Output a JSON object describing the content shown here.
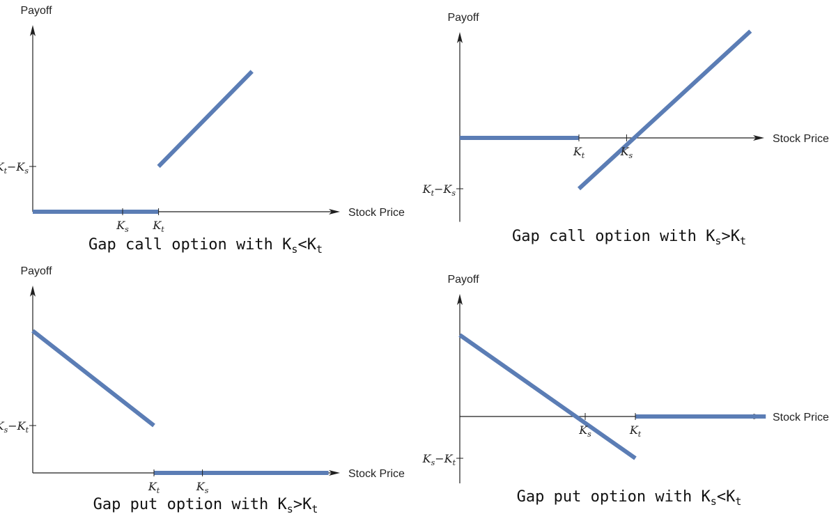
{
  "chart_data": [
    {
      "type": "line",
      "title": "Gap call option with K_s<K_t",
      "caption": {
        "pre": "Gap call option with K",
        "s1": "s",
        "mid": "<K",
        "s2": "t"
      },
      "xlabel": "Stock Price",
      "ylabel": "Payoff",
      "xlim": [
        0,
        13.8
      ],
      "ylim": [
        0,
        7.5
      ],
      "x_ticks": [
        {
          "value": 5,
          "base": "K",
          "sub": "s"
        },
        {
          "value": 7,
          "base": "K",
          "sub": "t"
        }
      ],
      "y_ticks": [
        {
          "value": 2,
          "base": "K",
          "sub1": "t",
          "op": "−",
          "base2": "K",
          "sub2": "s"
        }
      ],
      "series": [
        {
          "segments": [
            {
              "x": [
                0,
                7
              ],
              "y": [
                0,
                0
              ]
            },
            {
              "x": [
                7,
                12.2
              ],
              "y": [
                2,
                6.2
              ]
            }
          ]
        }
      ]
    },
    {
      "type": "line",
      "title": "Gap call option with K_s>K_t",
      "caption": {
        "pre": "Gap call option with K",
        "s1": "s",
        "mid": ">K",
        "s2": "t"
      },
      "xlabel": "Stock Price",
      "ylabel": "Payoff",
      "xlim": [
        0,
        12
      ],
      "ylim": [
        -3.5,
        4.4
      ],
      "x_ticks": [
        {
          "value": 5,
          "base": "K",
          "sub": "t"
        },
        {
          "value": 7,
          "base": "K",
          "sub": "s"
        }
      ],
      "y_ticks": [
        {
          "value": -2,
          "base": "K",
          "sub1": "t",
          "op": "−",
          "base2": "K",
          "sub2": "s"
        }
      ],
      "series": [
        {
          "segments": [
            {
              "x": [
                0,
                5
              ],
              "y": [
                0,
                0
              ]
            },
            {
              "x": [
                5,
                12.2
              ],
              "y": [
                -2,
                4.2
              ]
            }
          ]
        }
      ]
    },
    {
      "type": "line",
      "title": "Gap put option with K_s>K_t",
      "caption": {
        "pre": "Gap put option with K",
        "s1": "s",
        "mid": ">K",
        "s2": "t"
      },
      "xlabel": "Stock Price",
      "ylabel": "Payoff",
      "xlim": [
        0,
        13.8
      ],
      "ylim": [
        0,
        7.5
      ],
      "x_ticks": [
        {
          "value": 5,
          "base": "K",
          "sub": "t"
        },
        {
          "value": 7,
          "base": "K",
          "sub": "s"
        }
      ],
      "y_ticks": [
        {
          "value": 2,
          "base": "K",
          "sub1": "s",
          "op": "−",
          "base2": "K",
          "sub2": "t"
        }
      ],
      "series": [
        {
          "segments": [
            {
              "x": [
                0,
                5
              ],
              "y": [
                6,
                2
              ]
            },
            {
              "x": [
                5,
                12.2
              ],
              "y": [
                0,
                0
              ]
            }
          ]
        }
      ]
    },
    {
      "type": "line",
      "title": "Gap put option with K_s<K_t",
      "caption": {
        "pre": "Gap put option with K",
        "s1": "s",
        "mid": "<K",
        "s2": "t"
      },
      "xlabel": "Stock Price",
      "ylabel": "Payoff",
      "xlim": [
        0,
        12
      ],
      "ylim": [
        -2.6,
        5
      ],
      "x_ticks": [
        {
          "value": 5,
          "base": "K",
          "sub": "s"
        },
        {
          "value": 7,
          "base": "K",
          "sub": "t"
        }
      ],
      "y_ticks": [
        {
          "value": -2,
          "base": "K",
          "sub1": "s",
          "op": "−",
          "base2": "K",
          "sub2": "t"
        }
      ],
      "series": [
        {
          "segments": [
            {
              "x": [
                0,
                7
              ],
              "y": [
                3.9,
                -2
              ]
            },
            {
              "x": [
                7,
                12.2
              ],
              "y": [
                0,
                0
              ]
            }
          ]
        }
      ]
    }
  ],
  "colors": {
    "line": "#5b7db5",
    "axis": "#1f1f1f"
  }
}
